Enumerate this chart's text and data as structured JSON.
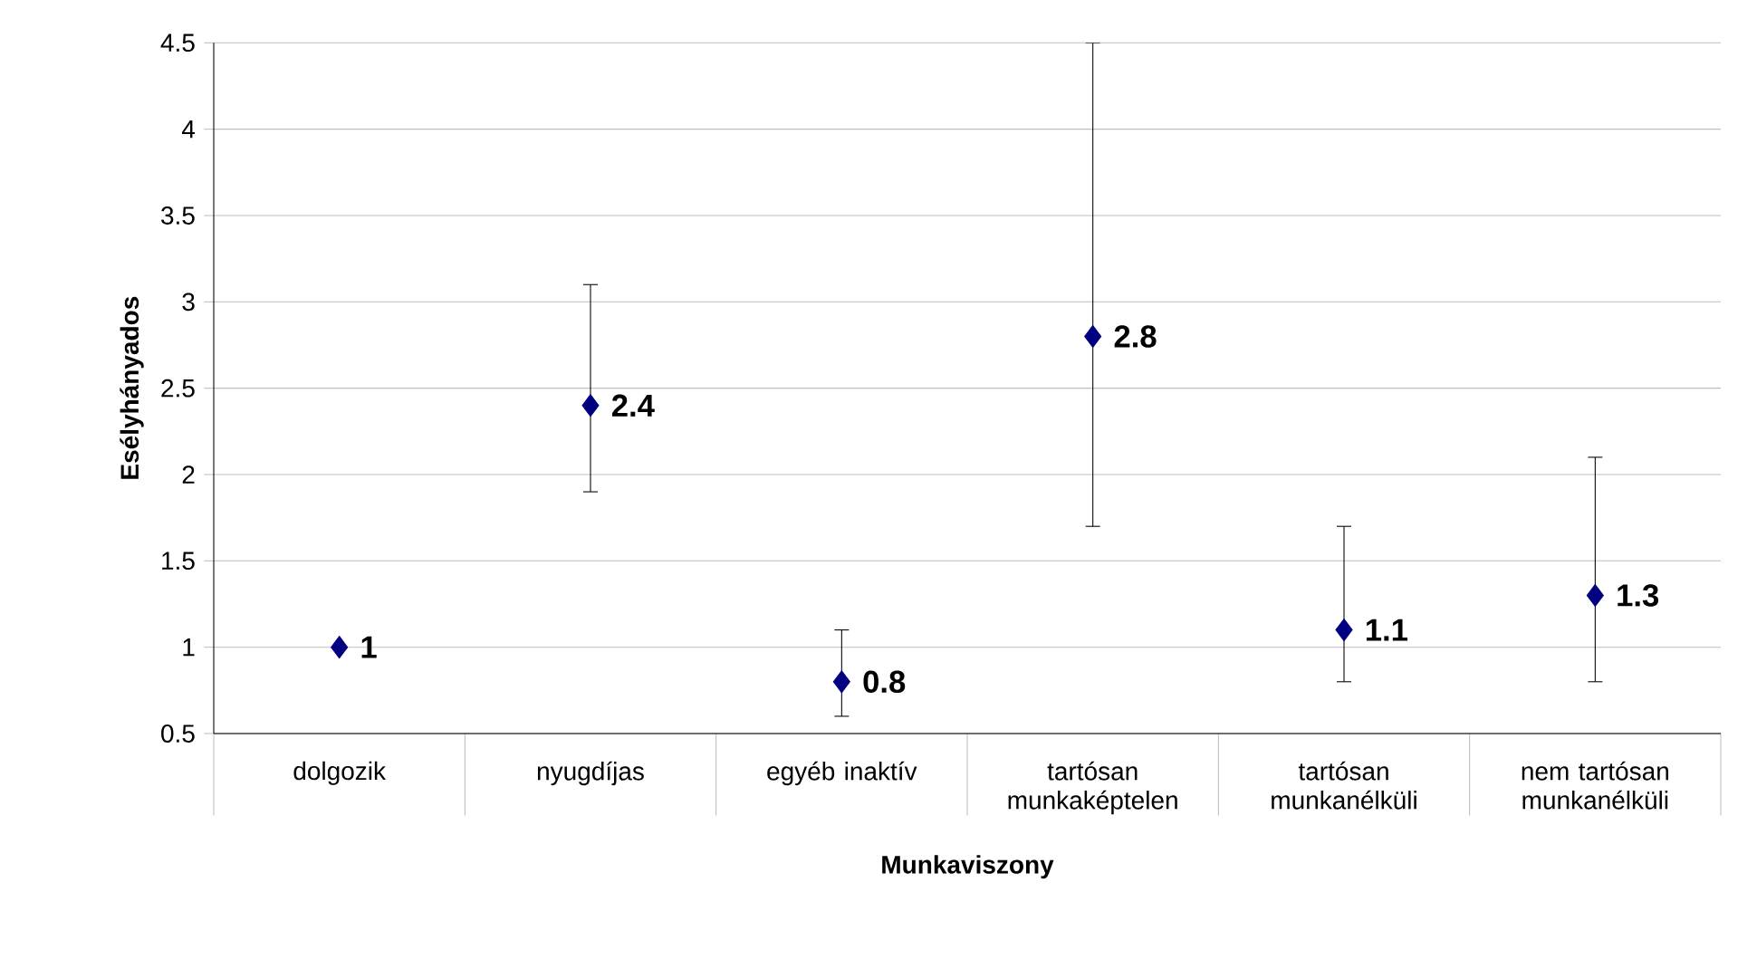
{
  "chart_data": {
    "type": "scatter",
    "xlabel": "Munkaviszony",
    "ylabel": "Esélyhányados",
    "categories": [
      "dolgozik",
      "nyugdíjas",
      "egyéb inaktív",
      "tartósan munkaképtelen",
      "tartósan munkanélküli",
      "nem tartósan munkanélküli"
    ],
    "values": [
      1,
      2.4,
      0.8,
      2.8,
      1.1,
      1.3
    ],
    "errors": [
      null,
      [
        1.9,
        3.1
      ],
      [
        0.6,
        1.1
      ],
      [
        1.7,
        4.5
      ],
      [
        0.8,
        1.7
      ],
      [
        0.8,
        2.1
      ]
    ],
    "color": "#000080",
    "marker": "diamond",
    "data_labels": true,
    "grid": "y",
    "ylim": [
      0.5,
      4.5
    ],
    "yticks": [
      0.5,
      1,
      1.5,
      2,
      2.5,
      3,
      3.5,
      4,
      4.5
    ]
  }
}
